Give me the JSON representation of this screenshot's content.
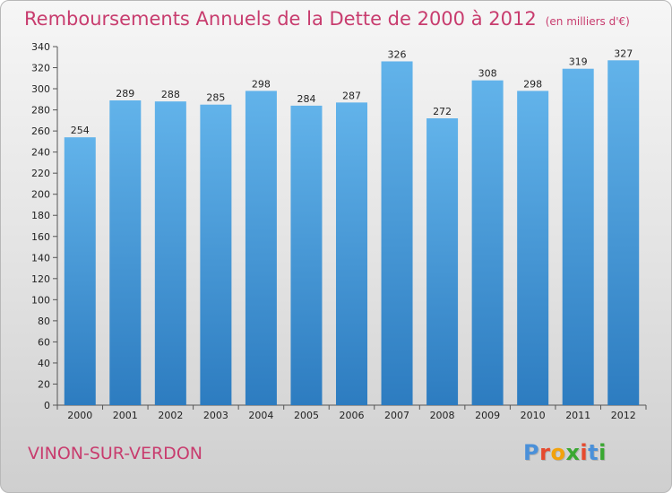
{
  "header": {
    "title": "Remboursements Annuels de la Dette de 2000 à 2012",
    "subtitle": "(en milliers d'€)"
  },
  "footer": {
    "town": "VINON-SUR-VERDON",
    "logo_text": "Proxiti",
    "logo_colors": [
      "#4a90d9",
      "#e64a2e",
      "#f2a20c",
      "#3aa832",
      "#e64a2e",
      "#4a90d9",
      "#3aa832"
    ]
  },
  "chart_data": {
    "type": "bar",
    "categories": [
      "2000",
      "2001",
      "2002",
      "2003",
      "2004",
      "2005",
      "2006",
      "2007",
      "2008",
      "2009",
      "2010",
      "2011",
      "2012"
    ],
    "values": [
      254,
      289,
      288,
      285,
      298,
      284,
      287,
      326,
      272,
      308,
      298,
      319,
      327
    ],
    "title": "Remboursements Annuels de la Dette de 2000 à 2012",
    "ylim": [
      0,
      340
    ],
    "yticks": [
      0,
      20,
      40,
      60,
      80,
      100,
      120,
      140,
      160,
      180,
      200,
      220,
      240,
      260,
      280,
      300,
      320,
      340
    ],
    "grid": false,
    "bar_color_top": "#62b3ea",
    "bar_color_bottom": "#2d7cc0"
  }
}
